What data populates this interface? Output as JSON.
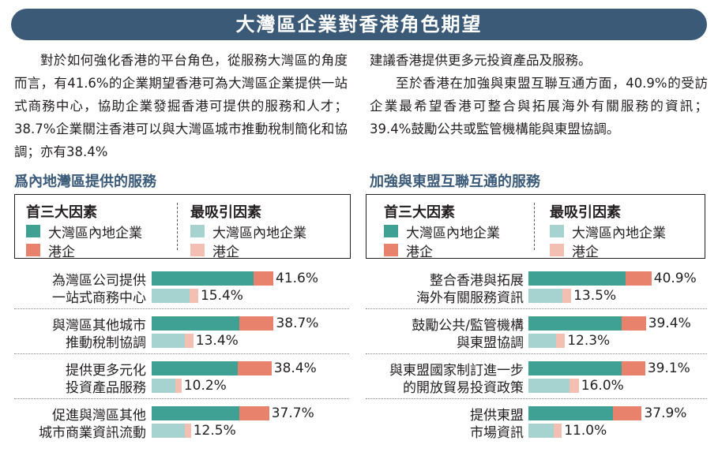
{
  "page_title": "大灣區企業對香港角色期望",
  "intro": {
    "left_paragraph": "對於如何強化香港的平台角色，從服務大灣區的角度而言，有41.6%的企業期望香港可為大灣區企業提供一站式商務中心，協助企業發掘香港可提供的服務和人才；38.7%企業關注香港可以與大灣區城市推動稅制簡化和協調；亦有38.4%",
    "right_paragraph_1": "建議香港提供更多元投資產品及服務。",
    "right_paragraph_2": "至於香港在加強與東盟互聯互通方面，40.9%的受訪企業最希望香港可整合與拓展海外有關服務的資訊；39.4%鼓勵公共或監管機構能與東盟協調。"
  },
  "colors": {
    "banner": "#3a5a78",
    "mainland_top3": "#3fa193",
    "hk_top3": "#e8826c",
    "mainland_most": "#a6d2cf",
    "hk_most": "#f2bfb2"
  },
  "legend": {
    "top3_heading": "首三大因素",
    "most_heading": "最吸引因素",
    "mainland_label": "大灣區內地企業",
    "hk_label": "港企"
  },
  "chart_data": [
    {
      "type": "bar",
      "title": "爲內地灣區提供的服務",
      "xlim": [
        0,
        50
      ],
      "categories": [
        [
          "為灣區公司提供",
          "一站式商務中心"
        ],
        [
          "與灣區其他城市",
          "推動稅制協調"
        ],
        [
          "提供更多元化",
          "投資產品服務"
        ],
        [
          "促進與灣區其他",
          "城市商業資訊流動"
        ]
      ],
      "series": [
        {
          "name": "首三大因素",
          "stacked": [
            [
              29.4,
              5.6
            ],
            [
              25.2,
              9.9
            ],
            [
              24.7,
              9.8
            ],
            [
              25.2,
              8.6
            ]
          ],
          "total_labels": [
            "41.6%",
            "38.7%",
            "38.4%",
            "37.7%"
          ]
        },
        {
          "name": "最吸引因素",
          "stacked": [
            [
              10.9,
              2.5
            ],
            [
              9.5,
              2.5
            ],
            [
              6.8,
              1.8
            ],
            [
              9.5,
              1.8
            ]
          ],
          "total_labels": [
            "15.4%",
            "13.4%",
            "10.2%",
            "12.5%"
          ]
        }
      ]
    },
    {
      "type": "bar",
      "title": "加強與東盟互聯互通的服務",
      "xlim": [
        0,
        50
      ],
      "categories": [
        [
          "整合香港與拓展",
          "海外有關服務資訊"
        ],
        [
          "鼓勵公共/監管機構",
          "與東盟協調"
        ],
        [
          "與東盟國家制訂進一步",
          "的開放貿易投資政策"
        ],
        [
          "提供東盟",
          "市場資訊"
        ]
      ],
      "series": [
        {
          "name": "首三大因素",
          "stacked": [
            [
              27.9,
              7.5
            ],
            [
              26.8,
              7.0
            ],
            [
              26.8,
              6.8
            ],
            [
              24.4,
              8.2
            ]
          ],
          "total_labels": [
            "40.9%",
            "39.4%",
            "39.1%",
            "37.9%"
          ]
        },
        {
          "name": "最吸引因素",
          "stacked": [
            [
              9.8,
              2.5
            ],
            [
              8.0,
              2.5
            ],
            [
              11.8,
              2.7
            ],
            [
              7.3,
              2.3
            ]
          ],
          "total_labels": [
            "13.5%",
            "12.3%",
            "16.0%",
            "11.0%"
          ]
        }
      ]
    }
  ]
}
